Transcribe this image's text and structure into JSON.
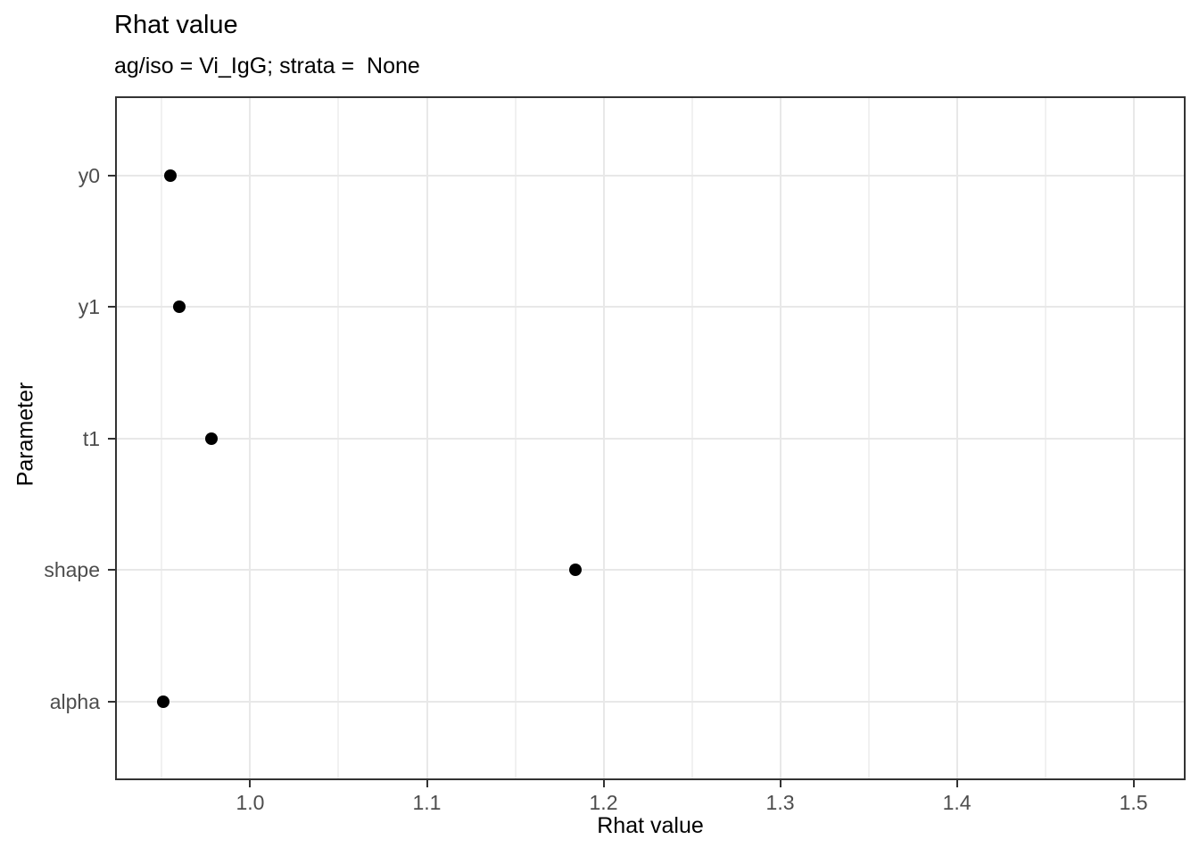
{
  "chart_data": {
    "type": "scatter",
    "subtype": "horizontal-dot-plot",
    "title": "Rhat value",
    "subtitle": "ag/iso = Vi_IgG; strata =  None",
    "xlabel": "Rhat value",
    "ylabel": "Parameter",
    "categories": [
      "y0",
      "y1",
      "t1",
      "shape",
      "alpha"
    ],
    "values": [
      0.955,
      0.96,
      0.978,
      1.184,
      0.951
    ],
    "xlim": [
      0.9235,
      1.5295
    ],
    "x_major_ticks": [
      1.0,
      1.1,
      1.2,
      1.3,
      1.4,
      1.5
    ],
    "x_tick_labels": [
      "1.0",
      "1.1",
      "1.2",
      "1.3",
      "1.4",
      "1.5"
    ],
    "x_minor_ticks": [
      0.95,
      1.05,
      1.15,
      1.25,
      1.35,
      1.45
    ],
    "grid": "vertical major+minor, horizontal major at categories",
    "legend": "none",
    "colors": {
      "point": "#000000",
      "grid_major": "#e8e8e8",
      "grid_minor": "#f1f1f1",
      "panel_border": "#333333",
      "tick_label": "#4d4d4d",
      "axis_title": "#000000",
      "background": "#ffffff"
    }
  }
}
